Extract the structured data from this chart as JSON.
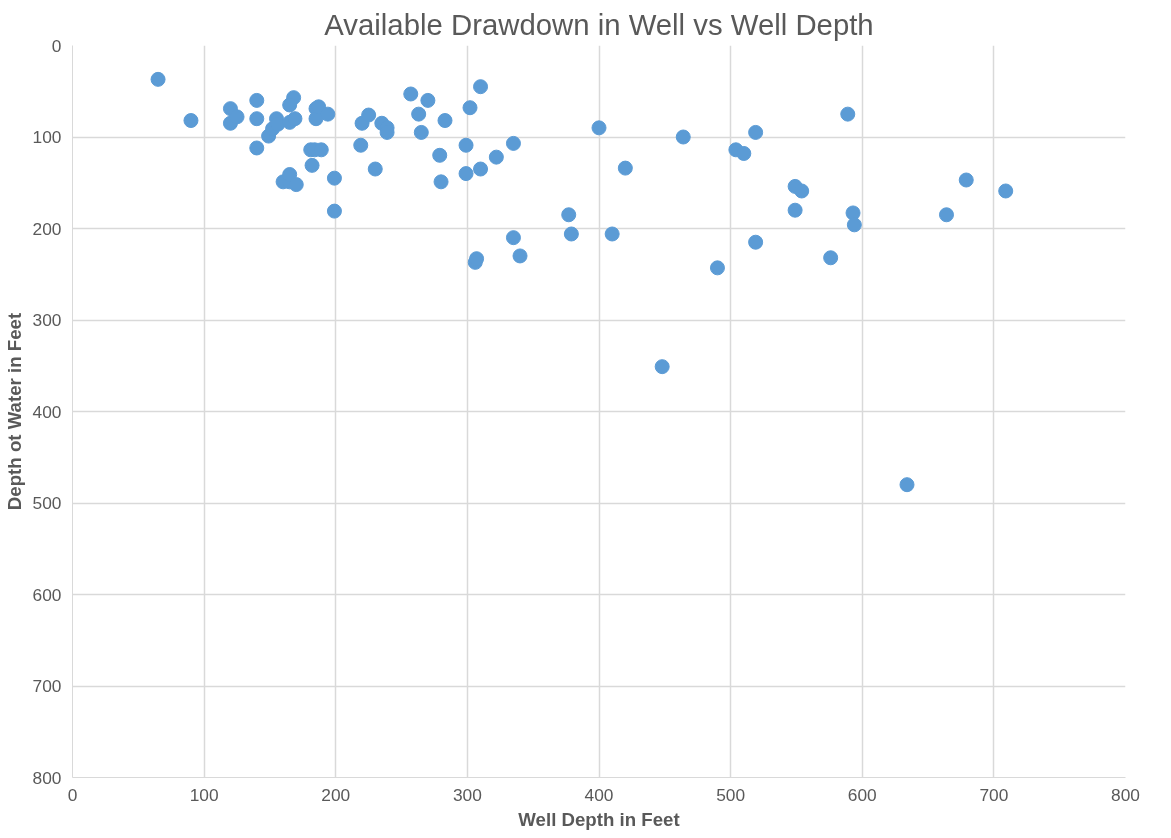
{
  "chart_data": {
    "type": "scatter",
    "title": "Available Drawdown in Well vs Well Depth",
    "xlabel": "Well Depth in Feet",
    "ylabel": "Depth ot Water in Feet",
    "xlim": [
      0,
      800
    ],
    "xticks": [
      0,
      100,
      200,
      300,
      400,
      500,
      600,
      700,
      800
    ],
    "ylim": [
      800,
      0
    ],
    "yticks": [
      0,
      100,
      200,
      300,
      400,
      500,
      600,
      700,
      800
    ],
    "grid": true,
    "marker": "circle",
    "series": [
      {
        "color": "#5b9bd5",
        "x": [
          65,
          90,
          120,
          120,
          125,
          140,
          140,
          140,
          149,
          152,
          155,
          156,
          160,
          165,
          165,
          168,
          165,
          165,
          169,
          170,
          181,
          182,
          184,
          185,
          185,
          187,
          189,
          194,
          199,
          199,
          219,
          220,
          225,
          230,
          235,
          239,
          239,
          257,
          263,
          265,
          270,
          279,
          280,
          283,
          299,
          299,
          302,
          306,
          307,
          310,
          310,
          322,
          335,
          335,
          340,
          377,
          379,
          400,
          410,
          420,
          448,
          464,
          490,
          504,
          510,
          519,
          519,
          549,
          554,
          549,
          576,
          589,
          593,
          594,
          634,
          664,
          679,
          709
        ],
        "values": [
          37,
          82,
          69,
          85,
          78,
          60,
          80,
          112,
          99,
          91,
          80,
          86,
          149,
          149,
          141,
          57,
          65,
          84,
          80,
          152,
          114,
          131,
          114,
          69,
          80,
          67,
          114,
          75,
          145,
          181,
          109,
          85,
          76,
          135,
          85,
          90,
          95,
          53,
          75,
          95,
          60,
          120,
          149,
          82,
          109,
          140,
          68,
          237,
          233,
          135,
          45,
          122,
          107,
          210,
          230,
          185,
          206,
          90,
          206,
          134,
          351,
          100,
          243,
          114,
          118,
          95,
          215,
          154,
          159,
          180,
          232,
          75,
          183,
          196,
          480,
          185,
          147,
          159
        ]
      }
    ]
  }
}
